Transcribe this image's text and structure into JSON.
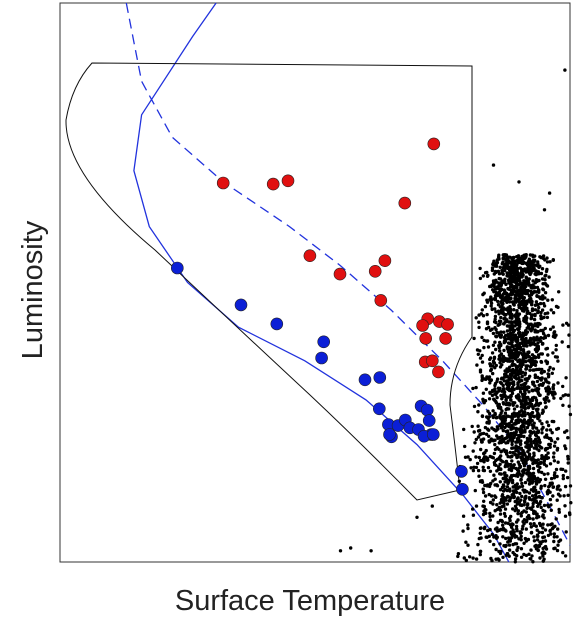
{
  "colors": {
    "red": "#e01010",
    "blue": "#0b1fd6",
    "black": "#000000",
    "track": "#2233dd"
  },
  "chart_data": {
    "type": "scatter",
    "title": "",
    "xlabel": "Surface Temperature",
    "ylabel": "Luminosity",
    "xlim": [
      0,
      100
    ],
    "ylim": [
      0,
      100
    ],
    "grid": false,
    "xticks": [],
    "yticks": [],
    "series": [
      {
        "color": "#e01010",
        "points": [
          [
            73.3,
            74.8
          ],
          [
            32.0,
            67.8
          ],
          [
            41.8,
            67.6
          ],
          [
            44.7,
            68.2
          ],
          [
            67.6,
            64.2
          ],
          [
            49.0,
            54.8
          ],
          [
            54.9,
            51.5
          ],
          [
            61.8,
            52.0
          ],
          [
            63.7,
            53.9
          ],
          [
            62.9,
            46.8
          ],
          [
            72.1,
            43.5
          ],
          [
            74.4,
            43.0
          ],
          [
            71.1,
            42.3
          ],
          [
            76.0,
            42.5
          ],
          [
            71.7,
            40.0
          ],
          [
            75.6,
            40.0
          ],
          [
            71.6,
            35.8
          ],
          [
            73.0,
            36.0
          ],
          [
            74.2,
            34.0
          ]
        ]
      },
      {
        "color": "#0b1fd6",
        "points": [
          [
            23.0,
            52.6
          ],
          [
            35.5,
            46.0
          ],
          [
            42.5,
            42.6
          ],
          [
            51.7,
            39.4
          ],
          [
            51.3,
            36.5
          ],
          [
            59.8,
            32.6
          ],
          [
            62.7,
            33.0
          ],
          [
            62.6,
            27.4
          ],
          [
            64.4,
            24.6
          ],
          [
            65.0,
            22.4
          ],
          [
            66.3,
            24.4
          ],
          [
            67.7,
            25.4
          ],
          [
            68.6,
            24.0
          ],
          [
            70.3,
            23.7
          ],
          [
            70.8,
            27.9
          ],
          [
            72.0,
            27.2
          ],
          [
            72.4,
            25.3
          ],
          [
            72.8,
            22.8
          ],
          [
            71.4,
            22.5
          ],
          [
            73.2,
            22.8
          ],
          [
            64.6,
            22.8
          ],
          [
            78.7,
            16.2
          ],
          [
            78.9,
            13.0
          ]
        ]
      }
    ],
    "field_stars": {
      "color": "#000000",
      "description_count": 2500,
      "x_center": 90,
      "x_spread": 3.6,
      "y_range": [
        0,
        55
      ]
    },
    "curves": [
      {
        "style": "solid",
        "color": "#2233dd",
        "points": [
          [
            30.6,
            100
          ],
          [
            26.0,
            94
          ],
          [
            16.0,
            80
          ],
          [
            14.5,
            70
          ],
          [
            17.5,
            60
          ],
          [
            25.0,
            50
          ],
          [
            35.0,
            42
          ],
          [
            48.0,
            36
          ],
          [
            60.0,
            29
          ],
          [
            70.0,
            21
          ],
          [
            79.0,
            12
          ],
          [
            85.0,
            5
          ],
          [
            88.0,
            0
          ]
        ]
      },
      {
        "style": "dashed",
        "color": "#2233dd",
        "points": [
          [
            13.0,
            100
          ],
          [
            14.5,
            93
          ],
          [
            16.0,
            86
          ],
          [
            22.0,
            76
          ],
          [
            32.0,
            68
          ],
          [
            45.0,
            60
          ],
          [
            55.0,
            53
          ],
          [
            65.0,
            45
          ],
          [
            75.0,
            36
          ],
          [
            83.0,
            28
          ],
          [
            90.0,
            20
          ],
          [
            96.0,
            10
          ],
          [
            100.0,
            3
          ]
        ]
      }
    ]
  }
}
